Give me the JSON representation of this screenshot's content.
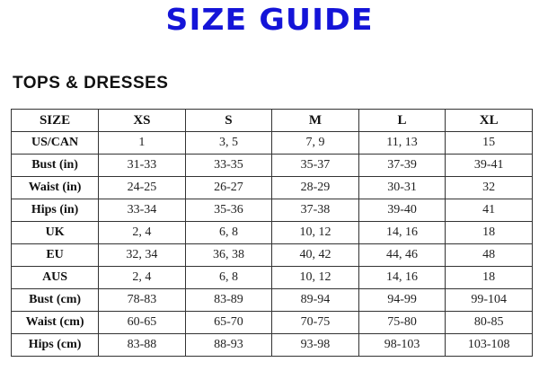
{
  "title": "SIZE GUIDE",
  "subtitle": "TOPS & DRESSES",
  "table": {
    "headers": [
      "SIZE",
      "XS",
      "S",
      "M",
      "L",
      "XL"
    ],
    "rows": [
      [
        "US/CAN",
        "1",
        "3, 5",
        "7, 9",
        "11, 13",
        "15"
      ],
      [
        "Bust (in)",
        "31-33",
        "33-35",
        "35-37",
        "37-39",
        "39-41"
      ],
      [
        "Waist (in)",
        "24-25",
        "26-27",
        "28-29",
        "30-31",
        "32"
      ],
      [
        "Hips (in)",
        "33-34",
        "35-36",
        "37-38",
        "39-40",
        "41"
      ],
      [
        "UK",
        "2, 4",
        "6, 8",
        "10, 12",
        "14, 16",
        "18"
      ],
      [
        "EU",
        "32, 34",
        "36, 38",
        "40, 42",
        "44, 46",
        "48"
      ],
      [
        "AUS",
        "2, 4",
        "6, 8",
        "10, 12",
        "14, 16",
        "18"
      ],
      [
        "Bust (cm)",
        "78-83",
        "83-89",
        "89-94",
        "94-99",
        "99-104"
      ],
      [
        "Waist (cm)",
        "60-65",
        "65-70",
        "70-75",
        "75-80",
        "80-85"
      ],
      [
        "Hips (cm)",
        "83-88",
        "88-93",
        "93-98",
        "98-103",
        "103-108"
      ]
    ]
  },
  "colors": {
    "title": "#1414d8"
  }
}
